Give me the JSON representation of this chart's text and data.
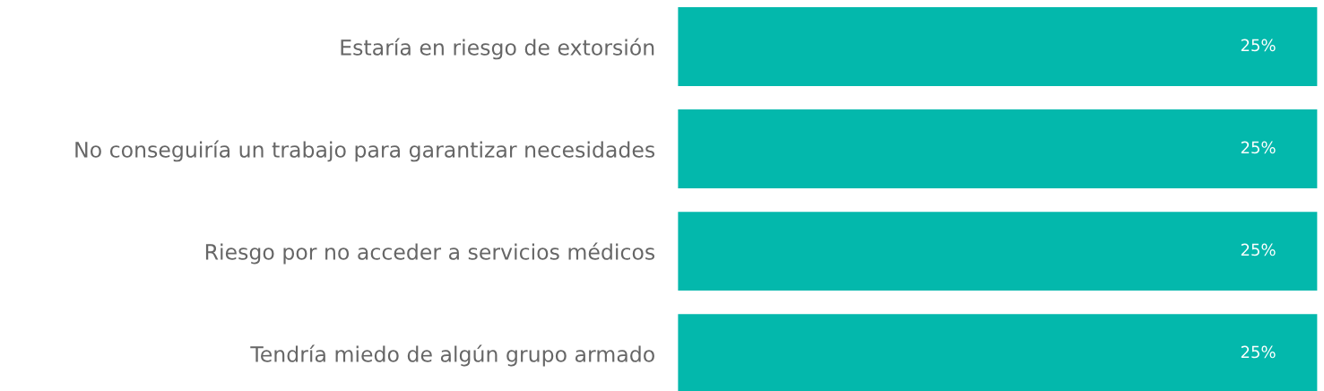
{
  "chart_data": {
    "type": "bar",
    "orientation": "horizontal",
    "categories": [
      "Estaría en riesgo de extorsión",
      "No conseguiría un trabajo para garantizar necesidades",
      "Riesgo por no acceder a servicios médicos",
      "Tendría miedo de algún grupo armado"
    ],
    "values": [
      25,
      25,
      25,
      25
    ],
    "value_labels": [
      "25%",
      "25%",
      "25%",
      "25%"
    ],
    "color": "#03b8ac",
    "grid": false,
    "legend": false
  }
}
